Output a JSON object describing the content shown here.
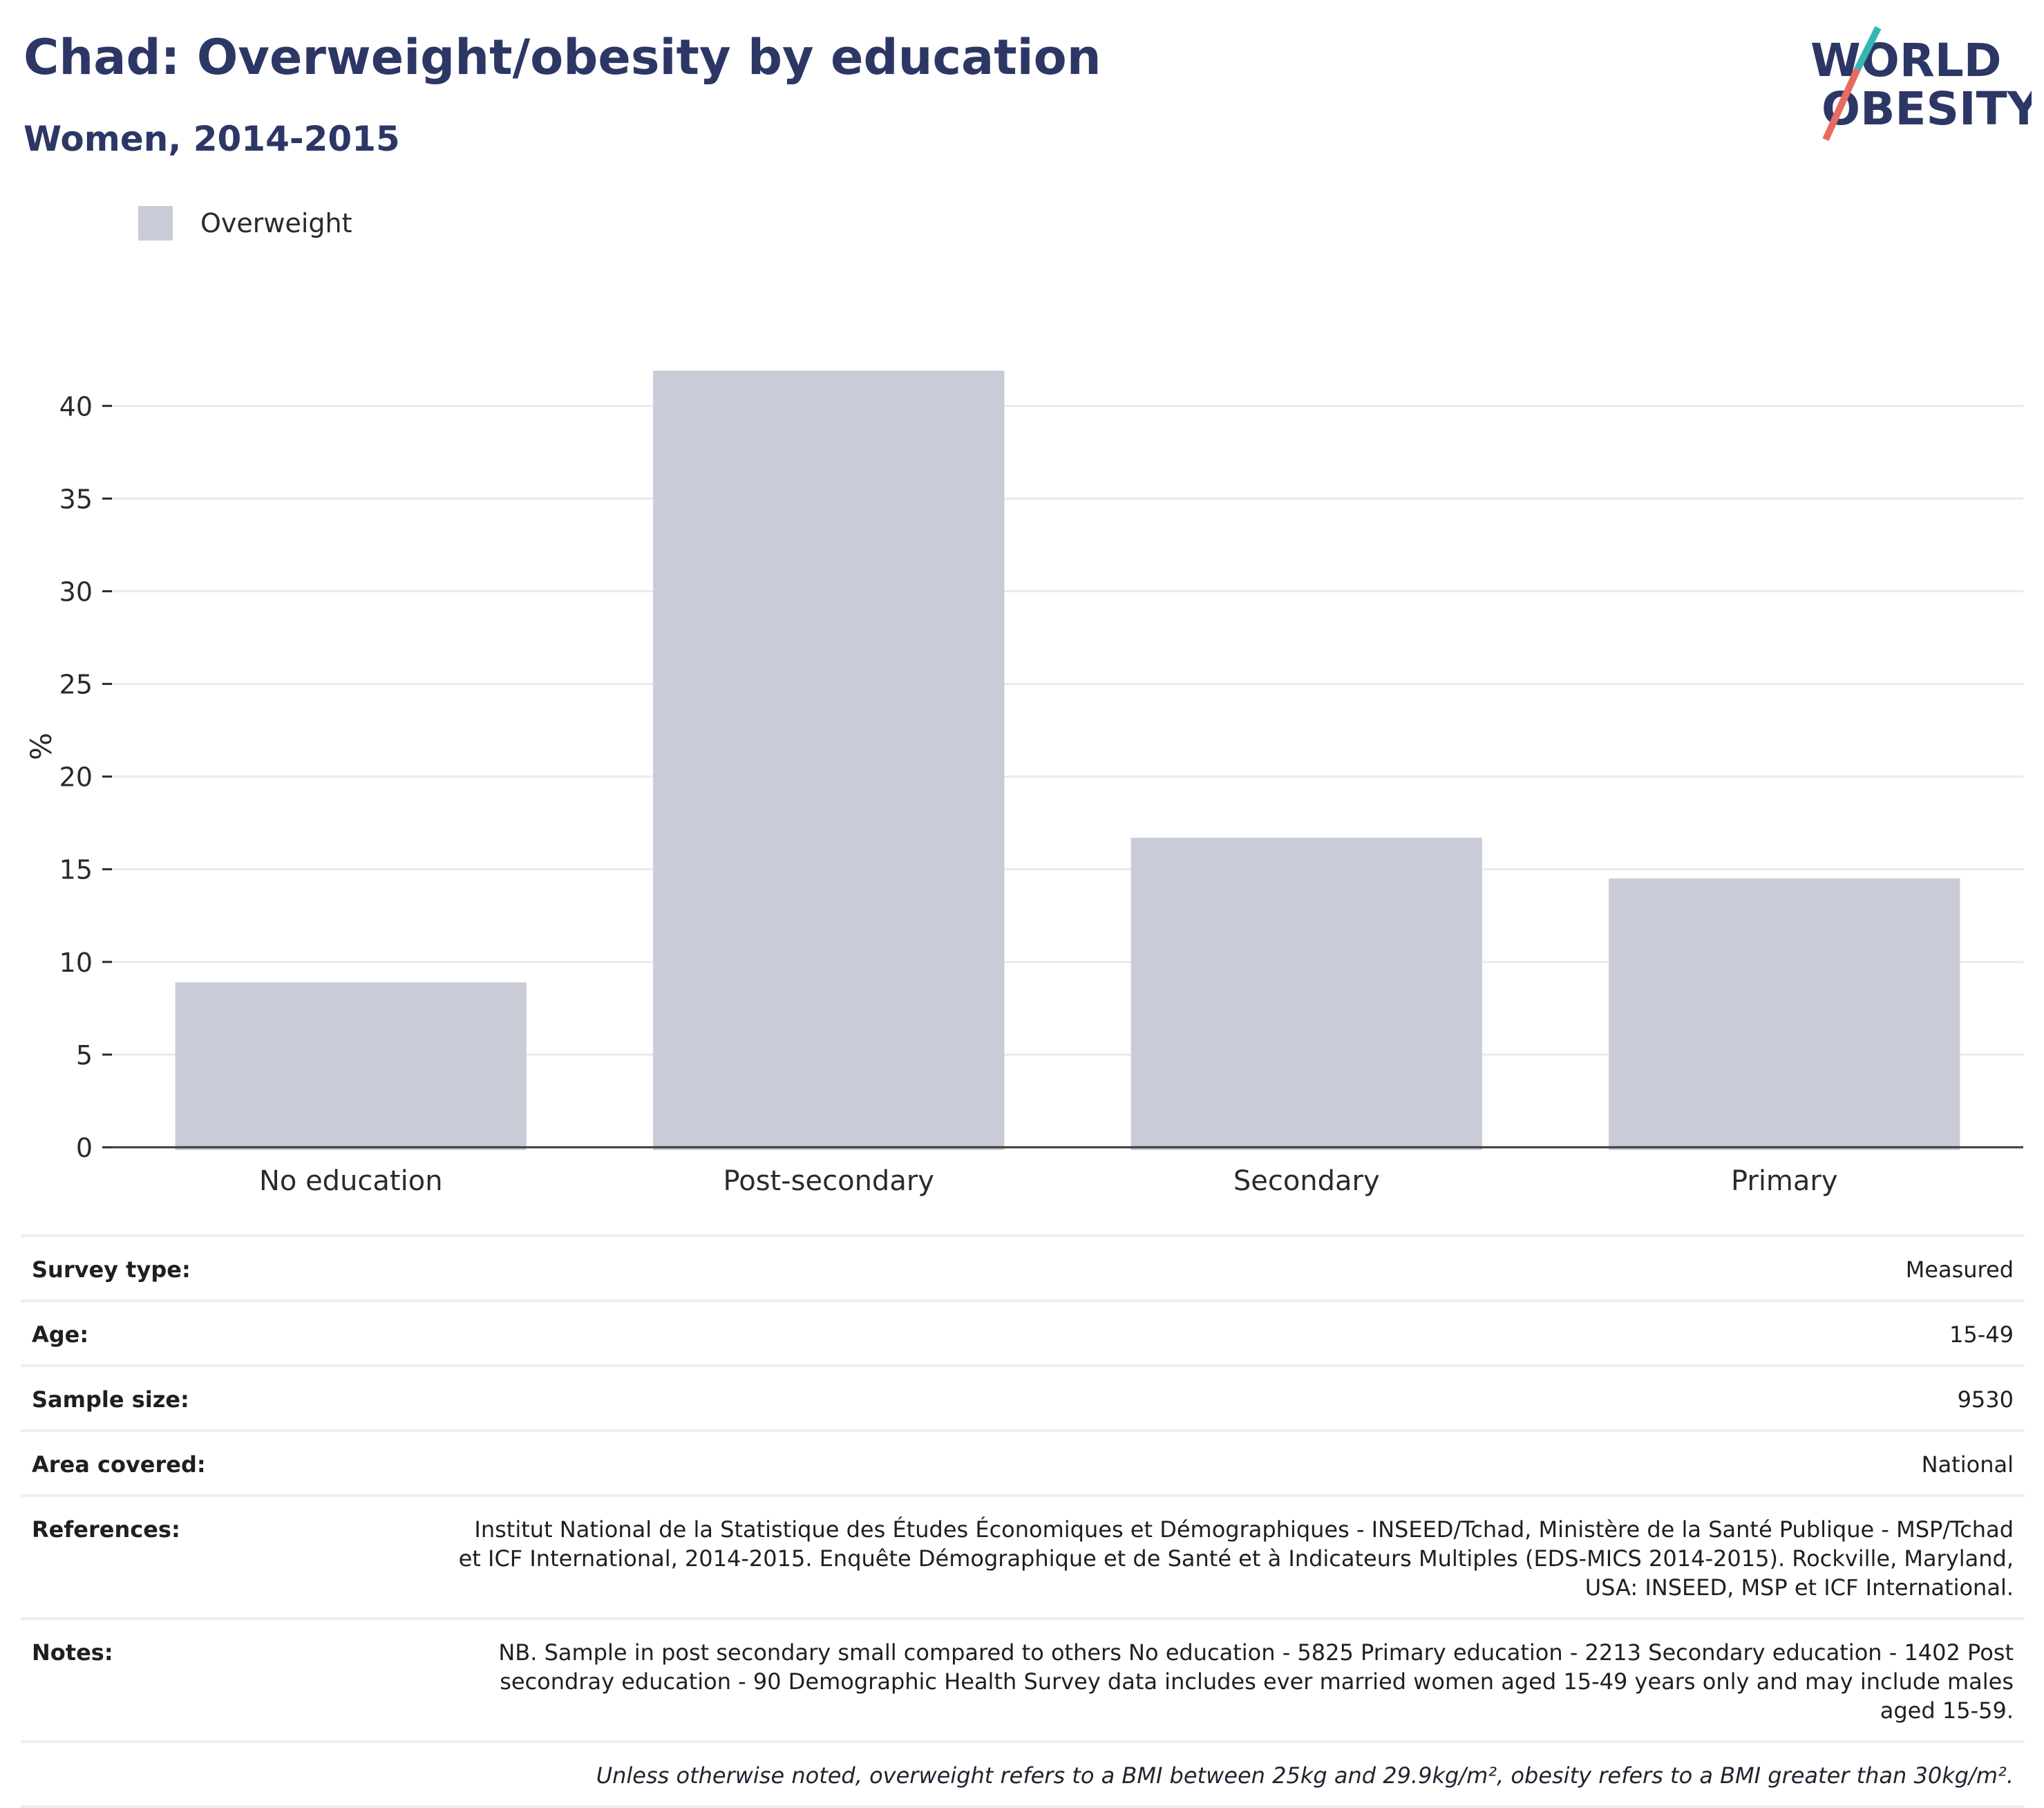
{
  "header": {
    "title": "Chad: Overweight/obesity by education",
    "subtitle": "Women, 2014-2015"
  },
  "logo": {
    "line1": "WORLD",
    "line2": "OBESITY",
    "colors": {
      "text": "#2d3765",
      "slash_teal": "#35b6b4",
      "slash_red": "#e86b5f"
    }
  },
  "legend": {
    "items": [
      {
        "label": "Overweight",
        "color": "#c9cbd7"
      }
    ]
  },
  "chart_data": {
    "type": "bar",
    "categories": [
      "No education",
      "Post-secondary",
      "Secondary",
      "Primary"
    ],
    "series": [
      {
        "name": "Overweight",
        "values": [
          8.9,
          41.9,
          16.7,
          14.5
        ],
        "color": "#c9cbd7"
      }
    ],
    "ylabel": "%",
    "xlabel": "",
    "ylim": [
      0,
      44
    ],
    "yticks": [
      0,
      5,
      10,
      15,
      20,
      25,
      30,
      35,
      40
    ],
    "grid": true,
    "legend_position": "top-left"
  },
  "meta": {
    "rows": [
      {
        "label": "Survey type:",
        "value": "Measured"
      },
      {
        "label": "Age:",
        "value": "15-49"
      },
      {
        "label": "Sample size:",
        "value": "9530"
      },
      {
        "label": "Area covered:",
        "value": "National"
      },
      {
        "label": "References:",
        "value": "Institut National de la Statistique des Études Économiques et Démographiques - INSEED/Tchad, Ministère de la Santé Publique - MSP/Tchad et ICF International, 2014-2015. Enquête Démographique et de Santé et à Indicateurs Multiples (EDS-MICS 2014-2015). Rockville, Maryland, USA: INSEED, MSP et ICF International."
      },
      {
        "label": "Notes:",
        "value": "NB. Sample in post secondary small compared to others No education - 5825 Primary education - 2213 Secondary education - 1402 Post secondray education - 90 Demographic Health Survey data includes ever married women aged 15-49 years only and may include males aged 15-59."
      }
    ],
    "footnote": "Unless otherwise noted, overweight refers to a BMI between 25kg and 29.9kg/m², obesity refers to a BMI greater than 30kg/m²."
  }
}
